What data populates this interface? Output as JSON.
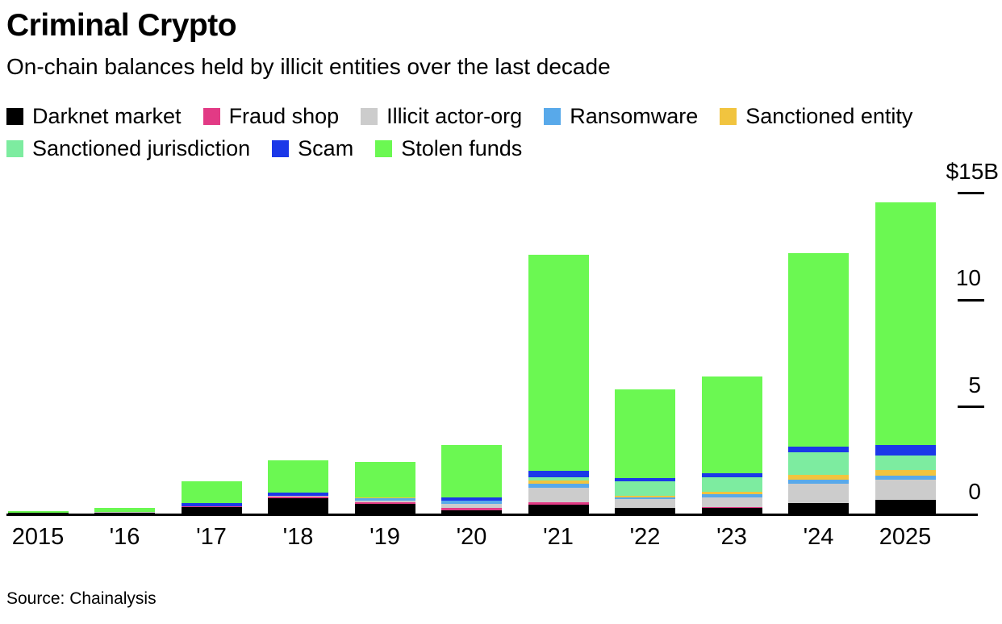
{
  "header": {
    "title": "Criminal Crypto",
    "subtitle": "On-chain balances held by illicit entities over the last decade"
  },
  "source": "Source: Chainalysis",
  "chart_data": {
    "type": "bar",
    "stacked": true,
    "title": "Criminal Crypto",
    "subtitle": "On-chain balances held by illicit entities over the last decade",
    "unit": "USD billions",
    "grid": false,
    "legend_position": "top",
    "categories": [
      "2015",
      "'16",
      "'17",
      "'18",
      "'19",
      "'20",
      "'21",
      "'22",
      "'23",
      "'24",
      "2025"
    ],
    "series": [
      {
        "name": "Darknet market",
        "color": "#000000",
        "values": [
          0.03,
          0.05,
          0.32,
          0.7,
          0.46,
          0.16,
          0.4,
          0.25,
          0.25,
          0.5,
          0.65
        ]
      },
      {
        "name": "Fraud shop",
        "color": "#e23a85",
        "values": [
          0.0,
          0.0,
          0.02,
          0.08,
          0.06,
          0.11,
          0.14,
          0.02,
          0.04,
          0.0,
          0.0
        ]
      },
      {
        "name": "Illicit actor-org",
        "color": "#cccccc",
        "values": [
          0.01,
          0.01,
          0.02,
          0.04,
          0.1,
          0.19,
          0.66,
          0.42,
          0.47,
          0.88,
          0.92
        ]
      },
      {
        "name": "Ransomware",
        "color": "#58a9ea",
        "values": [
          0.0,
          0.0,
          0.0,
          0.0,
          0.1,
          0.16,
          0.21,
          0.08,
          0.13,
          0.19,
          0.19
        ]
      },
      {
        "name": "Sanctioned entity",
        "color": "#f1c43f",
        "values": [
          0.0,
          0.0,
          0.0,
          0.0,
          0.05,
          0.0,
          0.13,
          0.06,
          0.13,
          0.25,
          0.28
        ]
      },
      {
        "name": "Sanctioned jurisdiction",
        "color": "#7deca0",
        "values": [
          0.0,
          0.0,
          0.0,
          0.0,
          0.0,
          0.0,
          0.15,
          0.67,
          0.67,
          1.04,
          0.69
        ]
      },
      {
        "name": "Scam",
        "color": "#1b38e8",
        "values": [
          0.01,
          0.01,
          0.13,
          0.15,
          0.0,
          0.15,
          0.31,
          0.16,
          0.21,
          0.28,
          0.48
        ]
      },
      {
        "name": "Stolen funds",
        "color": "#6bf852",
        "values": [
          0.06,
          0.19,
          1.01,
          1.53,
          1.63,
          2.43,
          10.1,
          4.14,
          4.5,
          9.04,
          11.37
        ]
      }
    ],
    "totals": [
      0.11,
      0.26,
      1.5,
      2.5,
      2.4,
      3.2,
      12.1,
      5.8,
      6.4,
      12.18,
      14.58
    ],
    "y_axis": {
      "ylim": [
        0,
        15
      ],
      "ticks": [
        {
          "label": "$15B",
          "value": 15
        },
        {
          "label": "10",
          "value": 10
        },
        {
          "label": "5",
          "value": 5
        },
        {
          "label": "0",
          "value": 0
        }
      ]
    }
  }
}
